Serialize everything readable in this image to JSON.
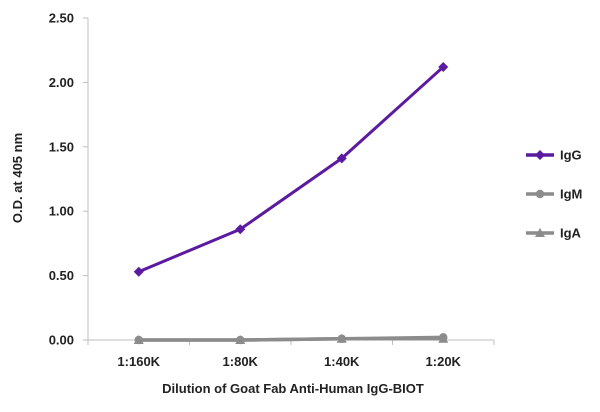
{
  "chart_data": {
    "type": "line",
    "categories": [
      "1:160K",
      "1:80K",
      "1:40K",
      "1:20K"
    ],
    "series": [
      {
        "name": "IgG",
        "values": [
          0.53,
          0.86,
          1.41,
          2.12
        ],
        "color": "#5b1aa0",
        "marker": "diamond"
      },
      {
        "name": "IgM",
        "values": [
          0.0,
          0.0,
          0.01,
          0.02
        ],
        "color": "#8c8c8c",
        "marker": "circle"
      },
      {
        "name": "IgA",
        "values": [
          0.0,
          0.0,
          0.01,
          0.01
        ],
        "color": "#8c8c8c",
        "marker": "triangle"
      }
    ],
    "xlabel": "Dilution of Goat Fab Anti-Human IgG-BIOT",
    "ylabel": "O.D. at 405 nm",
    "yticks": [
      "0.00",
      "0.50",
      "1.00",
      "1.50",
      "2.00",
      "2.50"
    ],
    "ylim": [
      0,
      2.5
    ],
    "grid": false,
    "legend_position": "right"
  }
}
